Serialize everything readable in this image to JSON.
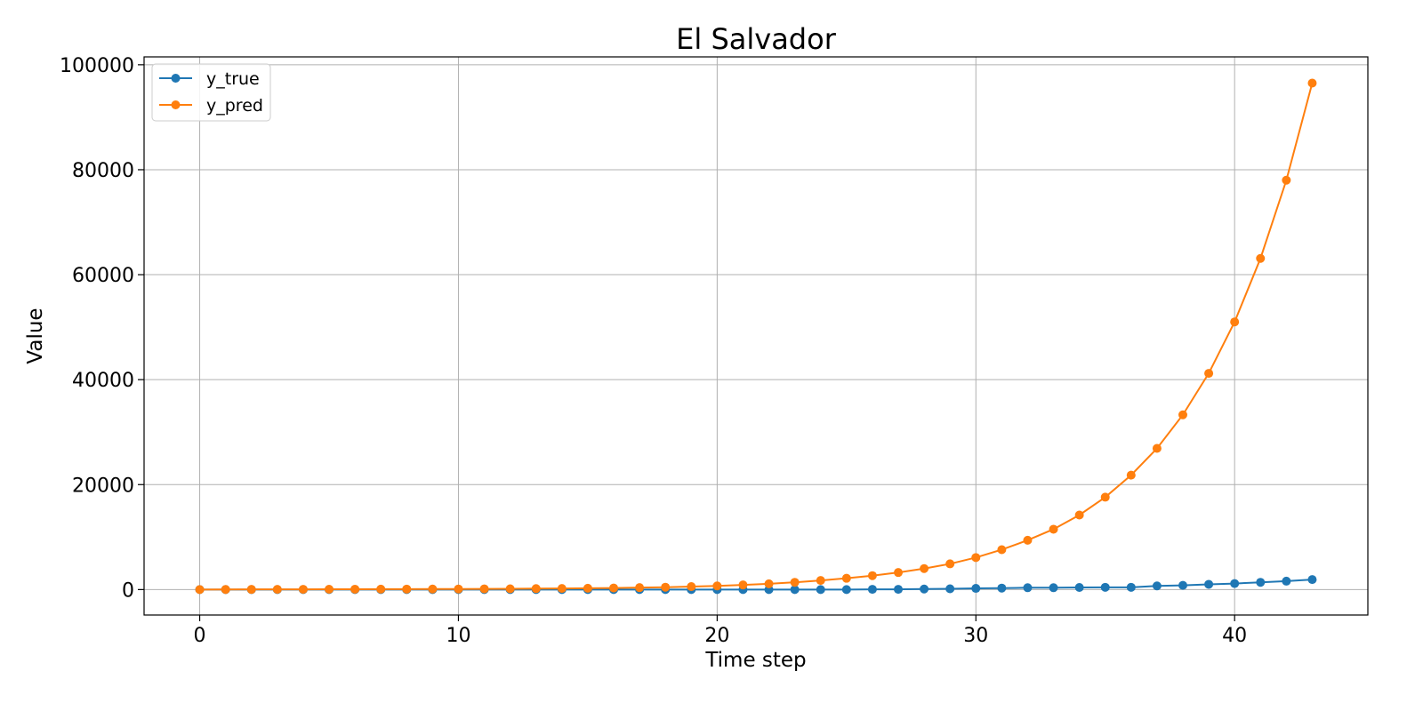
{
  "chart_data": {
    "type": "line",
    "title": "El Salvador",
    "xlabel": "Time step",
    "ylabel": "Value",
    "xlim": [
      -2.15,
      45.15
    ],
    "ylim": [
      -4850,
      101500
    ],
    "xticks": [
      0,
      10,
      20,
      30,
      40
    ],
    "yticks": [
      0,
      20000,
      40000,
      60000,
      80000,
      100000
    ],
    "grid": true,
    "legend_position": "top-left",
    "x": [
      0,
      1,
      2,
      3,
      4,
      5,
      6,
      7,
      8,
      9,
      10,
      11,
      12,
      13,
      14,
      15,
      16,
      17,
      18,
      19,
      20,
      21,
      22,
      23,
      24,
      25,
      26,
      27,
      28,
      29,
      30,
      31,
      32,
      33,
      34,
      35,
      36,
      37,
      38,
      39,
      40,
      41,
      42,
      43
    ],
    "series": [
      {
        "name": "y_true",
        "color": "#1f77b4",
        "values": [
          0,
          0,
          0,
          0,
          0,
          0,
          0,
          0,
          0,
          0,
          0,
          0,
          0,
          0,
          0,
          0,
          0,
          0,
          0,
          0,
          0,
          0,
          0,
          0,
          0,
          0,
          50,
          50,
          100,
          150,
          220,
          280,
          350,
          350,
          400,
          430,
          430,
          700,
          800,
          1000,
          1150,
          1380,
          1600,
          1900
        ]
      },
      {
        "name": "y_pred",
        "color": "#ff7f0e",
        "values": [
          0,
          20,
          30,
          40,
          50,
          60,
          70,
          80,
          90,
          100,
          110,
          130,
          150,
          180,
          210,
          250,
          300,
          370,
          450,
          560,
          700,
          880,
          1100,
          1380,
          1730,
          2150,
          2650,
          3250,
          4000,
          4900,
          6100,
          7600,
          9400,
          11500,
          14200,
          17600,
          21800,
          26900,
          33300,
          41200,
          51000,
          63100,
          78000,
          96500
        ]
      }
    ]
  }
}
